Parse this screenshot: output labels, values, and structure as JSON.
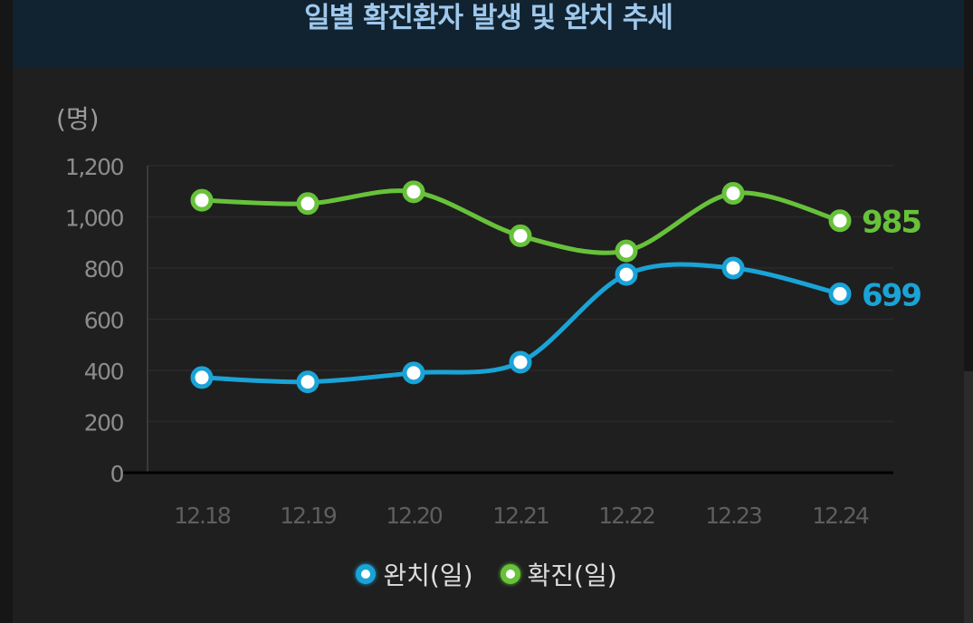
{
  "title": "일별 확진환자 발생 및 완치 추세",
  "colors": {
    "recovered": "#1aa3d6",
    "confirmed": "#67c23a",
    "axis_text": "#8c8c8c",
    "date_text": "#5e5e5e",
    "grid": "#2a2a2a"
  },
  "chart_data": {
    "type": "line",
    "y_unit_label": "(명)",
    "categories": [
      "12.18",
      "12.19",
      "12.20",
      "12.21",
      "12.22",
      "12.23",
      "12.24"
    ],
    "ylim": [
      0,
      1200
    ],
    "yticks": [
      0,
      200,
      400,
      600,
      800,
      1000,
      1200
    ],
    "ytick_labels": [
      "0",
      "200",
      "400",
      "600",
      "800",
      "1,000",
      "1,200"
    ],
    "grid": true,
    "legend_position": "bottom-center",
    "series": [
      {
        "name": "완치(일)",
        "values": [
          372,
          355,
          390,
          432,
          775,
          800,
          699
        ],
        "end_label": "699"
      },
      {
        "name": "확진(일)",
        "values": [
          1065,
          1052,
          1098,
          926,
          867,
          1092,
          985
        ],
        "end_label": "985"
      }
    ]
  }
}
